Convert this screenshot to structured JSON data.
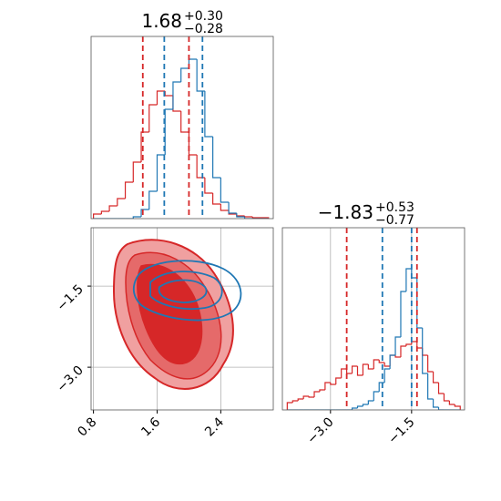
{
  "chart_data": [
    {
      "type": "histogram",
      "title": "1.68",
      "title_upper": "+0.30",
      "title_lower": "−0.28",
      "xlim": [
        0.77,
        3.06
      ],
      "ylim": [
        0,
        200
      ],
      "bins": [
        0.8,
        0.9,
        1.0,
        1.1,
        1.2,
        1.3,
        1.4,
        1.5,
        1.6,
        1.7,
        1.8,
        1.9,
        2.0,
        2.1,
        2.2,
        2.3,
        2.4,
        2.5,
        2.6,
        2.7,
        2.8,
        2.9,
        3.0
      ],
      "series": [
        {
          "color": "#d62728",
          "values": [
            5,
            8,
            14,
            22,
            40,
            62,
            95,
            125,
            140,
            135,
            118,
            95,
            70,
            45,
            28,
            16,
            9,
            5,
            3,
            2,
            1,
            1
          ]
        },
        {
          "color": "#1f77b4",
          "values": [
            0,
            0,
            0,
            0,
            0,
            2,
            10,
            30,
            70,
            120,
            150,
            165,
            175,
            140,
            90,
            45,
            18,
            6,
            2,
            0,
            0,
            0
          ]
        }
      ],
      "vlines": [
        {
          "value": 1.42,
          "color": "#d62728"
        },
        {
          "value": 2.0,
          "color": "#d62728"
        },
        {
          "value": 1.69,
          "color": "#1f77b4"
        },
        {
          "value": 2.17,
          "color": "#1f77b4"
        }
      ]
    },
    {
      "type": "contour",
      "xlim": [
        0.77,
        3.06
      ],
      "ylim": [
        -3.79,
        -0.42
      ],
      "xticks": [
        0.8,
        1.6,
        2.4
      ],
      "yticks": [
        {
          "value": -1.5,
          "label": "−1.5"
        },
        {
          "value": -3.0,
          "label": "−3.0"
        }
      ],
      "grid": true,
      "series": [
        {
          "color": "#ff0000",
          "x": [
            1.42,
            1.63,
            1.89
          ],
          "y": [
            -1.06,
            -1.6,
            -2.5
          ]
        },
        {
          "color": "#0000ff",
          "x": [
            1.93
          ],
          "y": [
            -1.69
          ]
        }
      ]
    },
    {
      "type": "histogram",
      "title": "−1.83",
      "title_upper": "+0.53",
      "title_lower": "−0.77",
      "xlim": [
        -3.89,
        -0.52
      ],
      "ylim": [
        0,
        200
      ],
      "xticks": [
        {
          "value": -3.0,
          "label": "−3.0"
        },
        {
          "value": -1.5,
          "label": "−1.5"
        }
      ],
      "grid": true,
      "bins": [
        -3.8,
        -3.7,
        -3.6,
        -3.5,
        -3.4,
        -3.3,
        -3.2,
        -3.1,
        -3.0,
        -2.9,
        -2.8,
        -2.7,
        -2.6,
        -2.5,
        -2.4,
        -2.3,
        -2.2,
        -2.1,
        -2.0,
        -1.9,
        -1.8,
        -1.7,
        -1.6,
        -1.5,
        -1.4,
        -1.3,
        -1.2,
        -1.1,
        -1.0,
        -0.9,
        -0.8,
        -0.7,
        -0.6
      ],
      "series": [
        {
          "color": "#d62728",
          "values": [
            8,
            10,
            12,
            15,
            14,
            20,
            22,
            30,
            28,
            35,
            45,
            40,
            48,
            38,
            50,
            45,
            55,
            52,
            48,
            60,
            58,
            70,
            72,
            75,
            68,
            60,
            42,
            30,
            18,
            10,
            6,
            4
          ]
        },
        {
          "color": "#1f77b4",
          "values": [
            0,
            0,
            0,
            0,
            0,
            0,
            0,
            0,
            0,
            0,
            0,
            0,
            2,
            4,
            6,
            10,
            20,
            30,
            45,
            60,
            80,
            130,
            155,
            145,
            90,
            40,
            12,
            3,
            0,
            0,
            0,
            0
          ]
        }
      ],
      "vlines": [
        {
          "value": -2.7,
          "color": "#d62728"
        },
        {
          "value": -1.4,
          "color": "#d62728"
        },
        {
          "value": -2.04,
          "color": "#1f77b4"
        },
        {
          "value": -1.5,
          "color": "#1f77b4"
        }
      ]
    }
  ]
}
